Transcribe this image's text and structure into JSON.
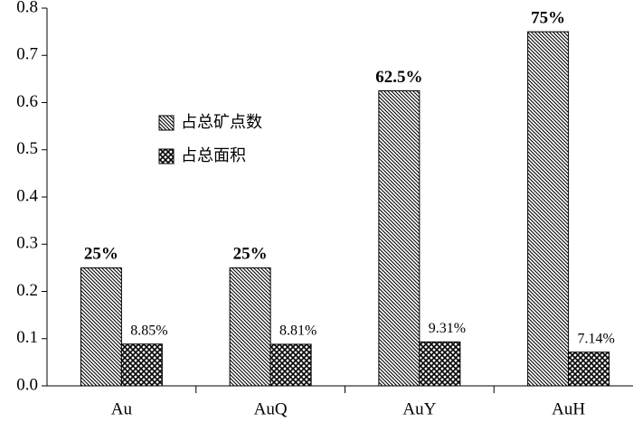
{
  "chart_data": {
    "type": "bar",
    "categories": [
      "Au",
      "AuQ",
      "AuY",
      "AuH"
    ],
    "series": [
      {
        "name": "占总矿点数",
        "color": "#000000",
        "pattern": "diagonal",
        "values": [
          0.25,
          0.25,
          0.625,
          0.75
        ],
        "value_labels": [
          "25%",
          "25%",
          "62.5%",
          "75%"
        ]
      },
      {
        "name": "占总面积",
        "color": "#000000",
        "pattern": "crosshatch",
        "values": [
          0.0885,
          0.0881,
          0.0931,
          0.0714
        ],
        "value_labels": [
          "8.85%",
          "8.81%",
          "9.31%",
          "7.14%"
        ]
      }
    ],
    "ylim": [
      0,
      0.8
    ],
    "yticks": [
      {
        "value": 0,
        "label": "0.0"
      },
      0.1,
      0.2,
      0.3,
      0.4,
      0.5,
      0.6,
      0.7,
      0.8
    ],
    "grid": false
  }
}
